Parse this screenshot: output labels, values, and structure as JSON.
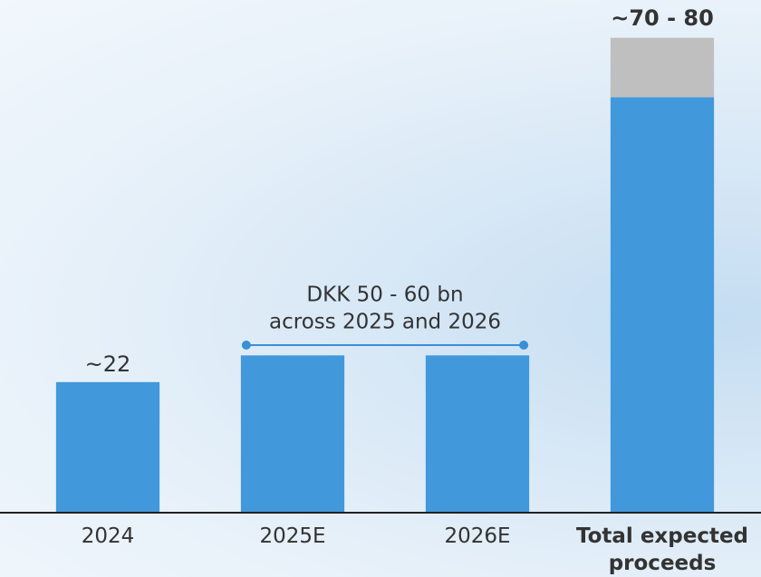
{
  "chart_data": {
    "type": "bar",
    "stacked": true,
    "categories": [
      "2024",
      "2025E",
      "2026E",
      "Total expected proceeds"
    ],
    "series": [
      {
        "color": "#4198db",
        "values": [
          22,
          26.5,
          26.5,
          70
        ],
        "value_labels": [
          "~22",
          null,
          null,
          null
        ]
      },
      {
        "color": "#bfbfbf",
        "values": [
          null,
          null,
          null,
          10
        ]
      }
    ],
    "annotations": [
      "~70 - 80",
      "DKK 50 - 60 bn",
      "across 2025 and 2026"
    ],
    "ylim": [
      0,
      85
    ],
    "grid": false
  }
}
